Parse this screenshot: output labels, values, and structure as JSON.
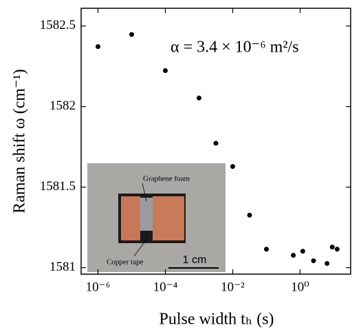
{
  "chart_data": {
    "type": "scatter",
    "x_label": "Pulse width tₕ (s)",
    "y_label": "Raman shift  ω (cm⁻¹)",
    "annotation": "α = 3.4 × 10⁻⁶ m²/s",
    "inset_labels": [
      "Graphene foam",
      "Copper tape",
      "1 cm"
    ],
    "xscale": "log",
    "color": "#000000",
    "x": [
      1e-06,
      1e-05,
      0.0001,
      0.001,
      0.00316,
      0.01,
      0.0316,
      0.1,
      0.63,
      1.2,
      2.5,
      6.3,
      9,
      12.6
    ],
    "values": [
      1582.372,
      1582.447,
      1582.223,
      1582.053,
      1581.772,
      1581.628,
      1581.326,
      1581.115,
      1581.077,
      1581.102,
      1581.043,
      1581.026,
      1581.128,
      1581.115
    ],
    "xlim": [
      3.16e-07,
      31.6
    ],
    "ylim": [
      1580.96,
      1582.61
    ],
    "xticks": [
      {
        "value": 1e-06,
        "label": "10⁻⁶"
      },
      {
        "value": 0.0001,
        "label": "10⁻⁴"
      },
      {
        "value": 0.01,
        "label": "10⁻²"
      },
      {
        "value": 1,
        "label": "10⁰"
      }
    ],
    "yticks": [
      1581,
      1581.5,
      1582,
      1582.5
    ]
  }
}
